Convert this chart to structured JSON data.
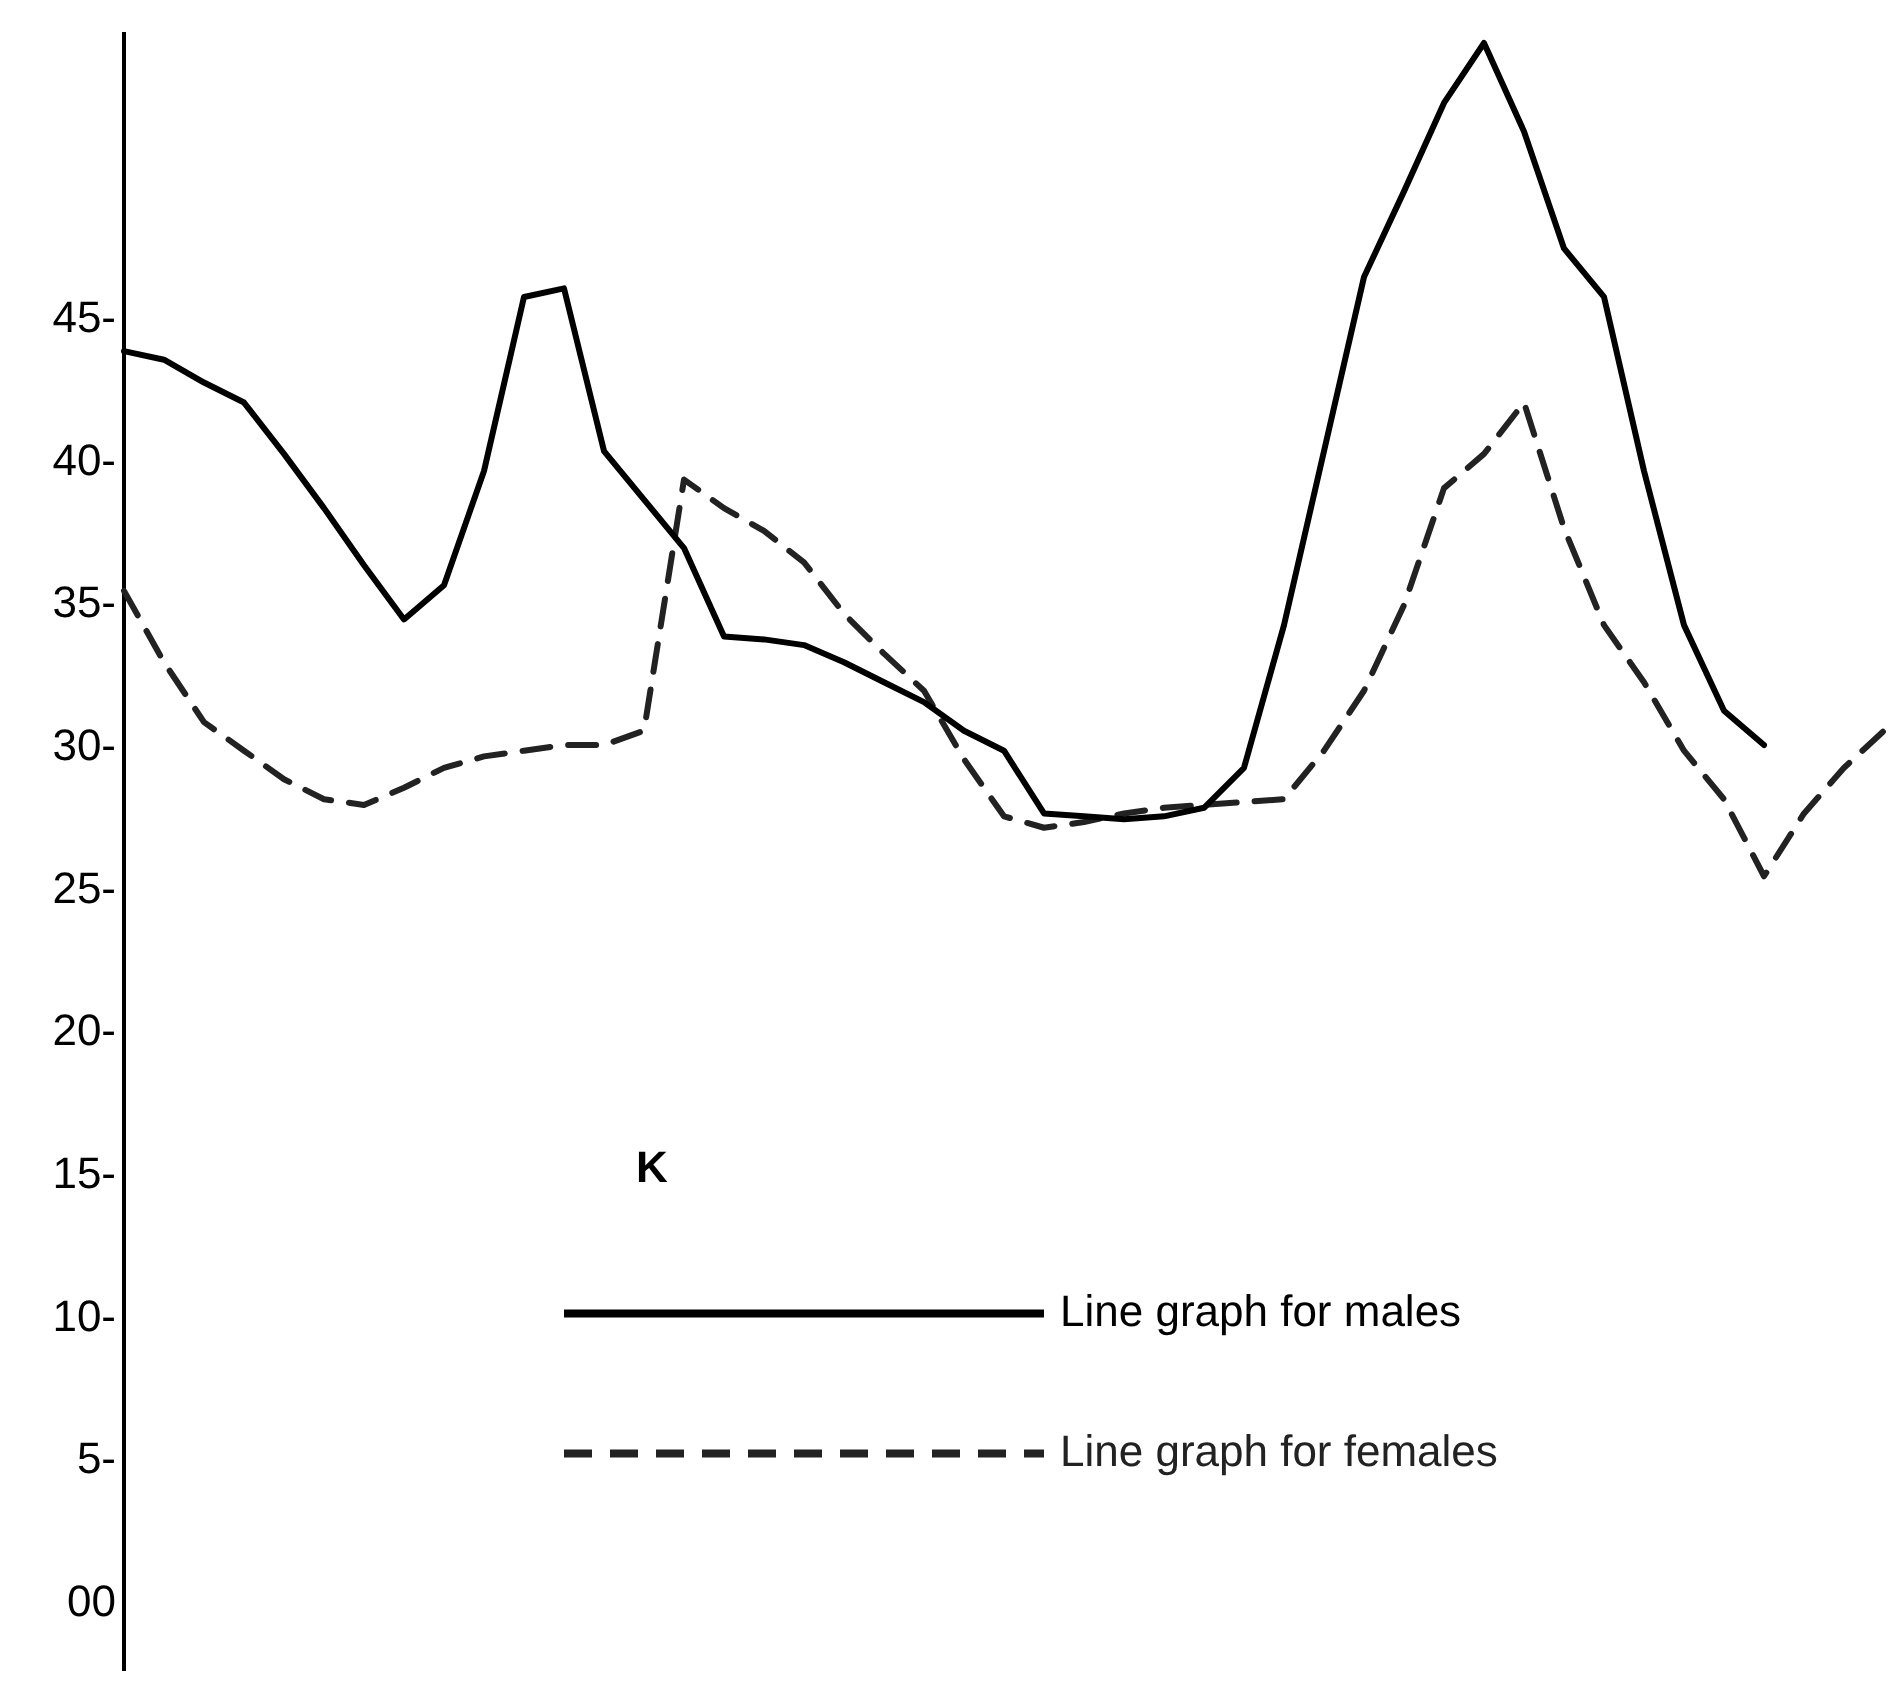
{
  "chart_data": {
    "type": "line",
    "categories": [
      null,
      null,
      null,
      null,
      null,
      null,
      null,
      null,
      null,
      null,
      null,
      null,
      null,
      null,
      null,
      null,
      null,
      null,
      null,
      null,
      null,
      null,
      null,
      null,
      null,
      null,
      null,
      null,
      null,
      null,
      null,
      null,
      null,
      null,
      null,
      null,
      null,
      null,
      null,
      null,
      null,
      null,
      null,
      null,
      null
    ],
    "series": [
      {
        "name": "Line graph for males",
        "color": "#000000",
        "line_style": "solid",
        "values": [
          43.9,
          43.6,
          42.8,
          42.1,
          40.3,
          38.4,
          36.4,
          34.5,
          35.7,
          39.7,
          45.8,
          46.1,
          40.4,
          38.7,
          37.0,
          33.9,
          33.8,
          33.6,
          33.0,
          32.3,
          31.6,
          30.6,
          29.9,
          27.7,
          27.6,
          27.5,
          27.6,
          27.9,
          29.3,
          34.3,
          40.4,
          46.5,
          49.5,
          52.6,
          54.7,
          51.6,
          47.5,
          45.8,
          39.7,
          34.3,
          31.3,
          30.1,
          null,
          null,
          null
        ]
      },
      {
        "name": "Line graph for females",
        "color": "#222222",
        "line_style": "dashed",
        "values": [
          35.5,
          33.0,
          30.9,
          29.9,
          28.9,
          28.2,
          28.0,
          28.6,
          29.3,
          29.7,
          29.9,
          30.1,
          30.1,
          30.6,
          39.4,
          38.4,
          37.6,
          36.5,
          34.7,
          33.3,
          32.0,
          29.6,
          27.6,
          27.2,
          27.4,
          27.7,
          27.9,
          28.0,
          28.1,
          28.2,
          29.9,
          32.0,
          35.0,
          39.1,
          40.3,
          42.1,
          37.7,
          34.3,
          32.3,
          29.9,
          28.2,
          25.5,
          27.7,
          29.3,
          30.6
        ]
      }
    ],
    "ylim": [
      -2.3,
      55
    ],
    "yticks": [
      {
        "value": 0,
        "label": "00"
      },
      {
        "value": 5,
        "label": "5-"
      },
      {
        "value": 10,
        "label": "10-"
      },
      {
        "value": 15,
        "label": "15-"
      },
      {
        "value": 20,
        "label": "20-"
      },
      {
        "value": 25,
        "label": "25-"
      },
      {
        "value": 30,
        "label": "30-"
      },
      {
        "value": 35,
        "label": "35-"
      },
      {
        "value": 40,
        "label": "40-"
      },
      {
        "value": 45,
        "label": "45-"
      }
    ],
    "tick_labels": "y",
    "grid": false,
    "marker": "none",
    "legend": "bottom right",
    "legend_title": "K"
  }
}
